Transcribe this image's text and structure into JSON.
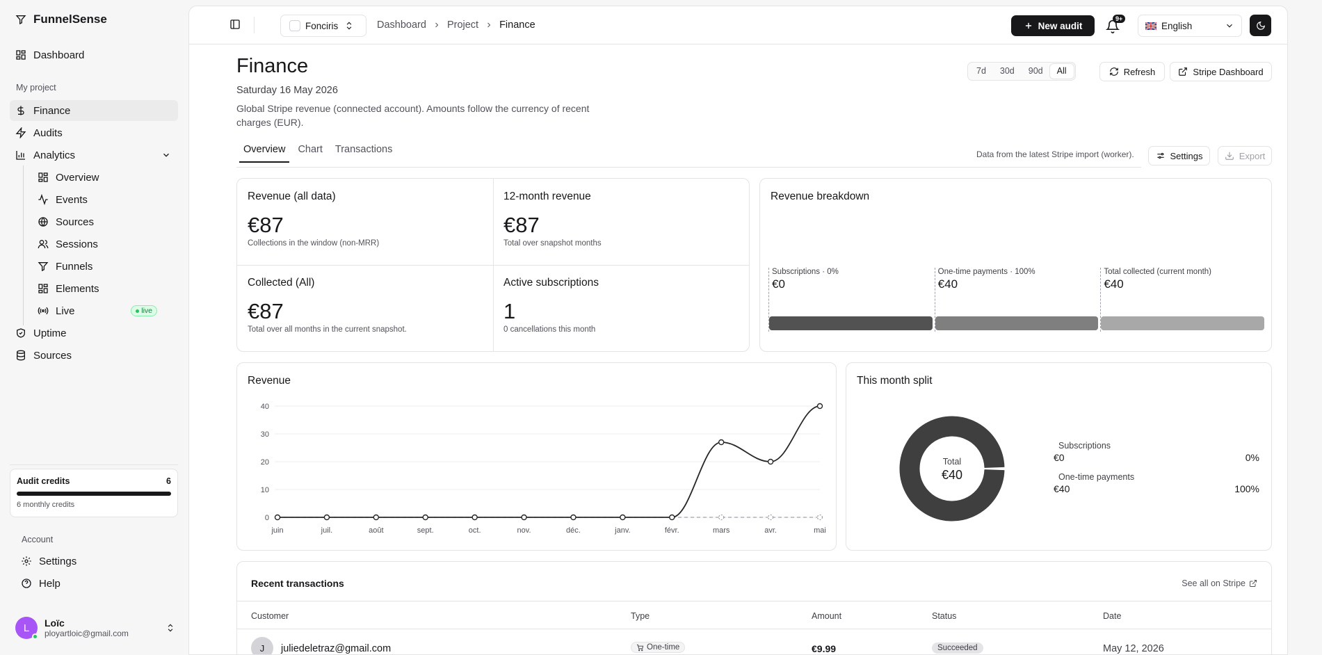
{
  "sidebar": {
    "brand": "FunnelSense",
    "dashboard": "Dashboard",
    "group_project": "My project",
    "items": [
      {
        "label": "Finance",
        "icon": "dollar-icon",
        "active": true
      },
      {
        "label": "Audits",
        "icon": "zap-icon"
      },
      {
        "label": "Analytics",
        "icon": "bar-chart-icon"
      }
    ],
    "analytics_sub": [
      {
        "label": "Overview",
        "icon": "grid-icon"
      },
      {
        "label": "Events",
        "icon": "activity-icon"
      },
      {
        "label": "Sources",
        "icon": "globe-icon"
      },
      {
        "label": "Sessions",
        "icon": "users-icon"
      },
      {
        "label": "Funnels",
        "icon": "funnel-icon"
      },
      {
        "label": "Elements",
        "icon": "grid-icon"
      },
      {
        "label": "Live",
        "icon": "radio-icon",
        "badge": "live"
      }
    ],
    "after": [
      {
        "label": "Uptime",
        "icon": "shield-check-icon"
      },
      {
        "label": "Sources",
        "icon": "database-icon"
      }
    ],
    "credits": {
      "title": "Audit credits",
      "count": "6",
      "subtitle": "6 monthly credits",
      "fill": 1.0
    },
    "group_account": "Account",
    "account": [
      {
        "label": "Settings",
        "icon": "gear-icon"
      },
      {
        "label": "Help",
        "icon": "help-circle-icon"
      }
    ],
    "user": {
      "initial": "L",
      "name": "Loïc",
      "email": "ployartloic@gmail.com"
    }
  },
  "topbar": {
    "project": "Fonciris",
    "breadcrumb": [
      "Dashboard",
      "Project",
      "Finance"
    ],
    "new_audit": "New audit",
    "notif_count": "9+",
    "language": "English"
  },
  "page": {
    "title": "Finance",
    "date": "Saturday 16 May 2026",
    "description": "Global Stripe revenue (connected account). Amounts follow the currency of recent charges (EUR).",
    "ranges": [
      "7d",
      "30d",
      "90d",
      "All"
    ],
    "range_selected": "All",
    "refresh": "Refresh",
    "stripe_dashboard": "Stripe Dashboard",
    "tabs": [
      "Overview",
      "Chart",
      "Transactions"
    ],
    "tab_selected": "Overview",
    "data_note": "Data from the latest Stripe import (worker).",
    "settings": "Settings",
    "export": "Export"
  },
  "kpis": [
    {
      "label": "Revenue (all data)",
      "value": "€87",
      "sub": "Collections in the window (non-MRR)"
    },
    {
      "label": "12-month revenue",
      "value": "€87",
      "sub": "Total over snapshot months"
    },
    {
      "label": "Collected (All)",
      "value": "€87",
      "sub": "Total over all months in the current snapshot."
    },
    {
      "label": "Active subscriptions",
      "value": "1",
      "sub": "0 cancellations this month"
    }
  ],
  "breakdown": {
    "title": "Revenue breakdown",
    "segments": [
      {
        "label": "Subscriptions · 0%",
        "value": "€0",
        "color": "#525252"
      },
      {
        "label": "One-time payments · 100%",
        "value": "€40",
        "color": "#7f7f7f"
      },
      {
        "label": "Total collected (current month)",
        "value": "€40",
        "color": "#a8a8a8"
      }
    ]
  },
  "chart_data": [
    {
      "type": "line",
      "title": "Revenue",
      "x": [
        "juin",
        "juil.",
        "août",
        "sept.",
        "oct.",
        "nov.",
        "déc.",
        "janv.",
        "févr.",
        "mars",
        "avr.",
        "mai"
      ],
      "series": [
        {
          "values": [
            0,
            0,
            0,
            0,
            0,
            0,
            0,
            0,
            0,
            27,
            20,
            40
          ],
          "color": "#27272a"
        },
        {
          "values": [
            0,
            0,
            0,
            0,
            0,
            0,
            0,
            0,
            0,
            0,
            0,
            0
          ],
          "color": "#a1a1aa",
          "dashed": true
        }
      ],
      "yticks": [
        0,
        10,
        20,
        30,
        40
      ],
      "ylim": [
        0,
        40
      ],
      "grid": true
    },
    {
      "type": "pie",
      "title": "This month split",
      "center_label": "Total",
      "center_value": "€40",
      "slices": [
        {
          "name": "Subscriptions",
          "value": 0,
          "amount": "€0",
          "percent": "0%"
        },
        {
          "name": "One-time payments",
          "value": 40,
          "amount": "€40",
          "percent": "100%"
        }
      ],
      "color": "#3f3f3f"
    }
  ],
  "transactions": {
    "title": "Recent transactions",
    "see_all": "See all on Stripe",
    "columns": [
      "Customer",
      "Type",
      "Amount",
      "Status",
      "Date"
    ],
    "rows": [
      {
        "initial": "J",
        "customer": "juliedeletraz@gmail.com",
        "type": "One-time",
        "amount": "€9.99",
        "status": "Succeeded",
        "date": "May 12, 2026"
      }
    ]
  }
}
